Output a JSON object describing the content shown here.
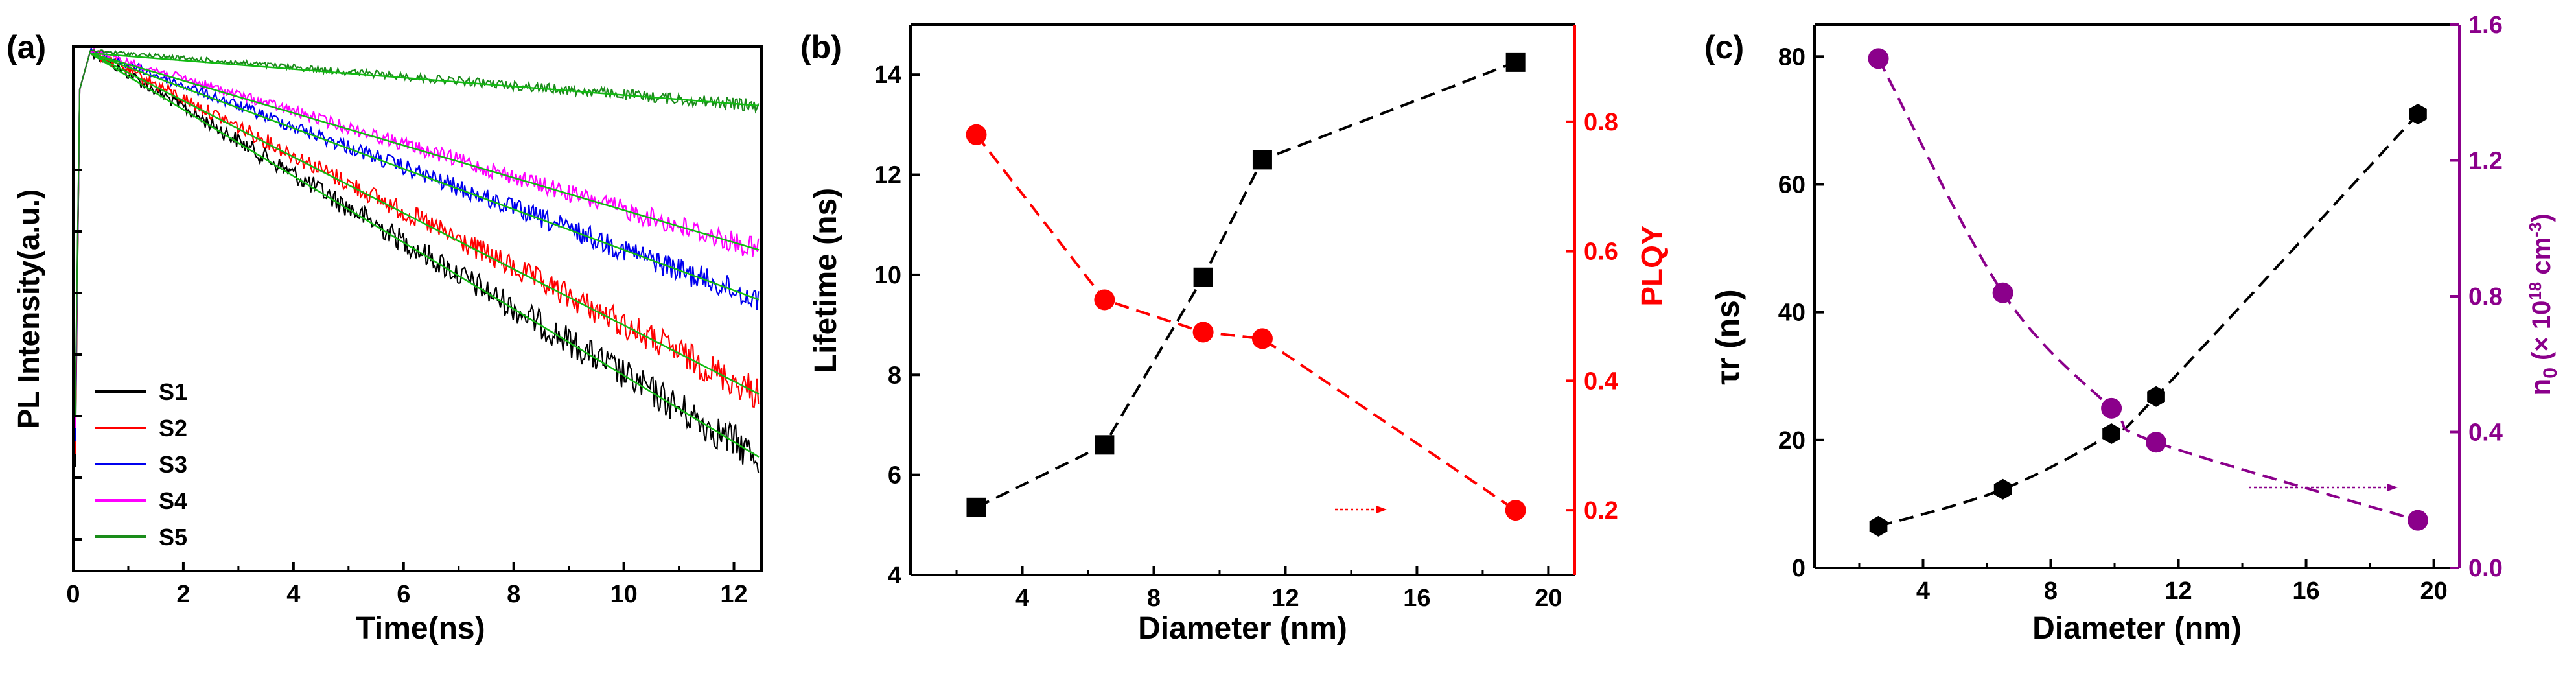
{
  "chart_data": [
    {
      "panel": "(a)",
      "type": "line",
      "title": "",
      "xlabel": "Time(ns)",
      "ylabel": "PL Intensity(a.u.)",
      "xlim": [
        0,
        12.5
      ],
      "ylim": [
        0,
        1
      ],
      "y_scale": "log (no tick labels)",
      "xticks": [
        "0",
        "2",
        "4",
        "6",
        "8",
        "10",
        "12"
      ],
      "legend_position": "bottom-left",
      "fit_line_color": "#11bb11",
      "series": [
        {
          "name": "S1",
          "color": "#000000",
          "peak_time": 0.3,
          "decay_fraction": [
            [
              0.3,
              0.0
            ],
            [
              12.5,
              0.775
            ]
          ]
        },
        {
          "name": "S2",
          "color": "#ff0000",
          "peak_time": 0.3,
          "decay_fraction": [
            [
              0.3,
              0.0
            ],
            [
              12.5,
              0.655
            ]
          ]
        },
        {
          "name": "S3",
          "color": "#0000ee",
          "peak_time": 0.3,
          "decay_fraction": [
            [
              0.3,
              0.0
            ],
            [
              12.5,
              0.475
            ]
          ]
        },
        {
          "name": "S4",
          "color": "#ff00ff",
          "peak_time": 0.3,
          "decay_fraction": [
            [
              0.3,
              0.0
            ],
            [
              12.5,
              0.38
            ]
          ]
        },
        {
          "name": "S5",
          "color": "#1a8c1a",
          "peak_time": 0.3,
          "decay_fraction": [
            [
              0.3,
              0.0
            ],
            [
              12.5,
              0.105
            ]
          ]
        }
      ]
    },
    {
      "panel": "(b)",
      "type": "line",
      "xlabel": "Diameter (nm)",
      "ylabel": "Lifetime (ns)",
      "ylabel_right": "PLQY",
      "xlim": [
        0.6,
        20.8
      ],
      "ylim": [
        4,
        15
      ],
      "ylim_right": [
        0.1,
        0.95
      ],
      "xticks": [
        "4",
        "8",
        "12",
        "16",
        "20"
      ],
      "yticks": [
        "4",
        "6",
        "8",
        "10",
        "12",
        "14"
      ],
      "yticks_right": [
        "0.2",
        "0.4",
        "0.6",
        "0.8"
      ],
      "right_axis_color": "#ff0000",
      "series": [
        {
          "name": "Lifetime",
          "axis": "left",
          "color": "#000000",
          "marker": "square",
          "x": [
            2.6,
            6.5,
            9.5,
            11.3,
            19.0
          ],
          "y": [
            5.35,
            6.6,
            9.95,
            12.3,
            14.25
          ]
        },
        {
          "name": "PLQY",
          "axis": "right",
          "color": "#ff0000",
          "marker": "circle",
          "x": [
            2.6,
            6.5,
            9.5,
            11.3,
            19.0
          ],
          "y": [
            0.78,
            0.525,
            0.475,
            0.465,
            0.2
          ]
        }
      ],
      "annotation": "arrow pointing right toward PLQY axis"
    },
    {
      "panel": "(c)",
      "type": "line",
      "xlabel": "Diameter (nm)",
      "ylabel": "τr (ns)",
      "ylabel_right": "n0 (× 10^18 cm^-3)",
      "ylabel_right_parts": [
        "n",
        "0",
        " (× 10",
        "18",
        " cm",
        "-3",
        ")"
      ],
      "xlim": [
        0.6,
        20.8
      ],
      "ylim": [
        0,
        85
      ],
      "ylim_right": [
        0.0,
        1.6
      ],
      "xticks": [
        "4",
        "8",
        "12",
        "16",
        "20"
      ],
      "yticks": [
        "0",
        "20",
        "40",
        "60",
        "80"
      ],
      "yticks_right": [
        "0.0",
        "0.4",
        "0.8",
        "1.2",
        "1.6"
      ],
      "right_axis_color": "#8b008b",
      "series": [
        {
          "name": "τr",
          "axis": "left",
          "color": "#000000",
          "marker": "hexagon",
          "x": [
            2.6,
            6.5,
            9.9,
            11.3,
            19.5
          ],
          "y": [
            6.5,
            12.3,
            21.0,
            26.8,
            71.0
          ]
        },
        {
          "name": "n0",
          "axis": "right",
          "color": "#8b008b",
          "marker": "circle",
          "x": [
            2.6,
            6.5,
            9.9,
            11.3,
            19.5
          ],
          "y": [
            1.5,
            0.81,
            0.47,
            0.37,
            0.14
          ]
        }
      ],
      "annotation": "arrow pointing right toward n0 axis"
    }
  ]
}
